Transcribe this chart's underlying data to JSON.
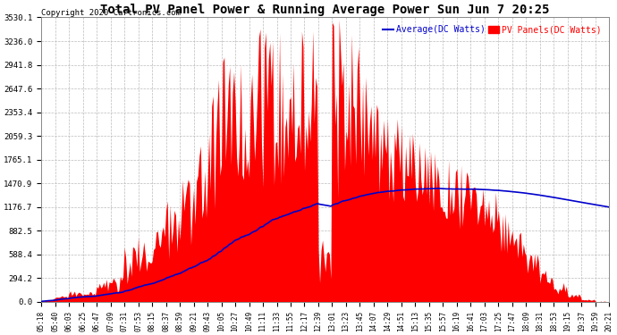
{
  "title": "Total PV Panel Power & Running Average Power Sun Jun 7 20:25",
  "copyright": "Copyright 2020 Cartronics.com",
  "legend_avg": "Average(DC Watts)",
  "legend_pv": "PV Panels(DC Watts)",
  "yticks": [
    0.0,
    294.2,
    588.4,
    882.5,
    1176.7,
    1470.9,
    1765.1,
    2059.3,
    2353.4,
    2647.6,
    2941.8,
    3236.0,
    3530.1
  ],
  "ymax": 3530.1,
  "ymin": 0.0,
  "bg_color": "#ffffff",
  "grid_color": "#bbbbbb",
  "pv_color": "#ff0000",
  "avg_color": "#0000cc",
  "title_color": "#000000",
  "copyright_color": "#000000",
  "xtick_labels": [
    "05:18",
    "05:40",
    "06:03",
    "06:25",
    "06:47",
    "07:09",
    "07:31",
    "07:53",
    "08:15",
    "08:37",
    "08:59",
    "09:21",
    "09:43",
    "10:05",
    "10:27",
    "10:49",
    "11:11",
    "11:33",
    "11:55",
    "12:17",
    "12:39",
    "13:01",
    "13:23",
    "13:45",
    "14:07",
    "14:29",
    "14:51",
    "15:13",
    "15:35",
    "15:57",
    "16:19",
    "16:41",
    "17:03",
    "17:25",
    "17:47",
    "18:09",
    "18:31",
    "18:53",
    "19:15",
    "19:37",
    "19:59",
    "20:21"
  ]
}
